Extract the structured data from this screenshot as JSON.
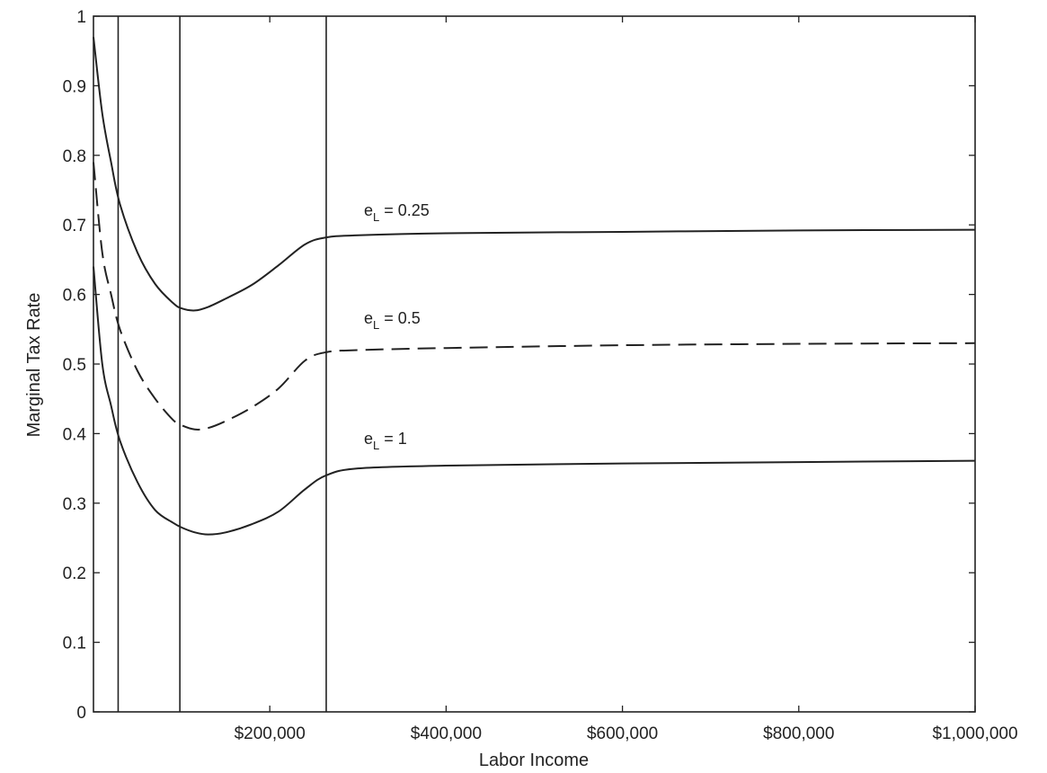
{
  "chart_data": {
    "type": "line",
    "xlabel": "Labor Income",
    "ylabel": "Marginal Tax Rate",
    "xlim": [
      0,
      1000000
    ],
    "ylim": [
      0,
      1
    ],
    "x_ticks": [
      200000,
      400000,
      600000,
      800000,
      1000000
    ],
    "x_tick_labels": [
      "$200,000",
      "$400,000",
      "$600,000",
      "$800,000",
      "$1,000,000"
    ],
    "y_ticks": [
      0,
      0.1,
      0.2,
      0.3,
      0.4,
      0.5,
      0.6,
      0.7,
      0.8,
      0.9,
      1
    ],
    "y_tick_labels": [
      "0",
      "0.1",
      "0.2",
      "0.3",
      "0.4",
      "0.5",
      "0.6",
      "0.7",
      "0.8",
      "0.9",
      "1"
    ],
    "grid": false,
    "vertical_lines_x": [
      28000,
      98000,
      264000
    ],
    "series": [
      {
        "label_main": "e",
        "label_sub": "L",
        "label_value": " = 0.25",
        "style": "solid",
        "color": "#222222",
        "x": [
          0,
          10000,
          20000,
          30000,
          50000,
          70000,
          90000,
          100000,
          115000,
          130000,
          150000,
          180000,
          210000,
          240000,
          264000,
          300000,
          400000,
          600000,
          800000,
          1000000
        ],
        "y": [
          0.97,
          0.86,
          0.79,
          0.73,
          0.66,
          0.615,
          0.588,
          0.58,
          0.577,
          0.582,
          0.594,
          0.614,
          0.642,
          0.672,
          0.682,
          0.685,
          0.688,
          0.69,
          0.692,
          0.693
        ]
      },
      {
        "label_main": "e",
        "label_sub": "L",
        "label_value": " = 0.5",
        "style": "dashed",
        "color": "#222222",
        "x": [
          0,
          10000,
          20000,
          30000,
          50000,
          70000,
          90000,
          100000,
          115000,
          130000,
          150000,
          180000,
          210000,
          240000,
          264000,
          300000,
          400000,
          600000,
          800000,
          1000000
        ],
        "y": [
          0.79,
          0.66,
          0.6,
          0.55,
          0.49,
          0.45,
          0.42,
          0.412,
          0.406,
          0.408,
          0.418,
          0.438,
          0.465,
          0.505,
          0.517,
          0.52,
          0.523,
          0.527,
          0.529,
          0.53
        ]
      },
      {
        "label_main": "e",
        "label_sub": "L",
        "label_value": " = 1",
        "style": "solid",
        "color": "#222222",
        "x": [
          0,
          10000,
          20000,
          30000,
          50000,
          70000,
          90000,
          100000,
          115000,
          130000,
          150000,
          180000,
          210000,
          240000,
          264000,
          300000,
          400000,
          600000,
          800000,
          1000000
        ],
        "y": [
          0.64,
          0.5,
          0.44,
          0.39,
          0.33,
          0.29,
          0.272,
          0.265,
          0.258,
          0.255,
          0.258,
          0.27,
          0.288,
          0.32,
          0.34,
          0.35,
          0.354,
          0.357,
          0.359,
          0.361
        ]
      }
    ]
  }
}
